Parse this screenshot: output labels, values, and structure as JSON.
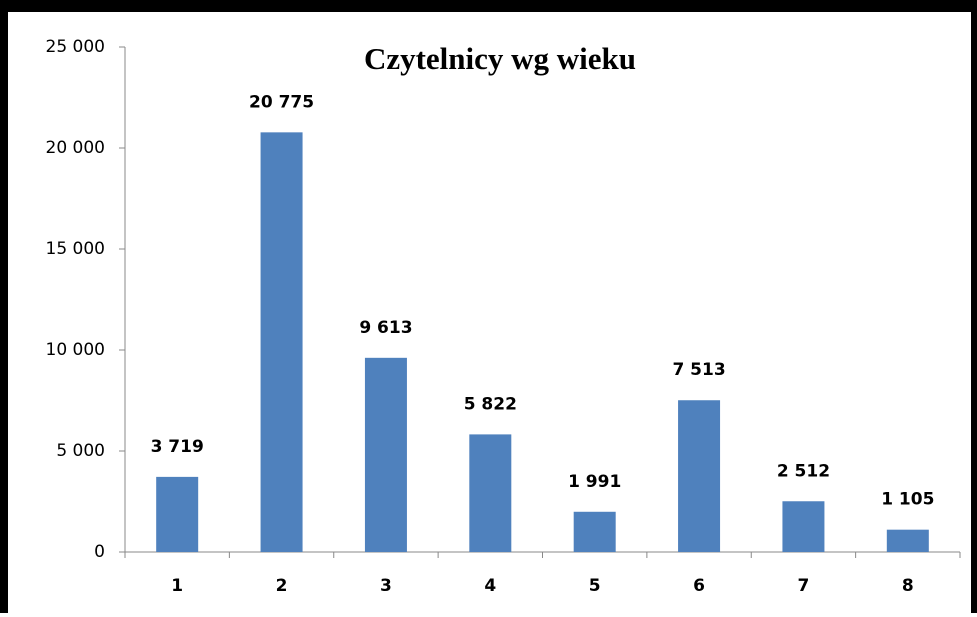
{
  "chart_data": {
    "type": "bar",
    "title": "Czytelnicy wg wieku",
    "categories": [
      "1",
      "2",
      "3",
      "4",
      "5",
      "6",
      "7",
      "8"
    ],
    "values": [
      3719,
      20775,
      9613,
      5822,
      1991,
      7513,
      2512,
      1105
    ],
    "value_labels": [
      "3 719",
      "20 775",
      "9 613",
      "5 822",
      "1 991",
      "7 513",
      "2 512",
      "1 105"
    ],
    "color": "#4f81bd",
    "ylim": [
      0,
      25000
    ],
    "yticks": [
      0,
      {
        "value": 5000,
        "label": "5 000"
      },
      {
        "value": 10000,
        "label": "10 000"
      },
      {
        "value": 15000,
        "label": "15 000"
      },
      {
        "value": 20000,
        "label": "20 000"
      },
      {
        "value": 25000,
        "label": "25 000"
      }
    ],
    "grid": false
  }
}
